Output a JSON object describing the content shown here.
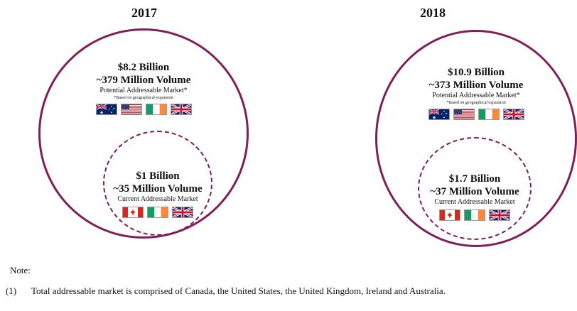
{
  "panels": [
    {
      "year": "2017",
      "potential": {
        "amount": "$8.2 Billion",
        "volume": "~379 Million Volume",
        "label": "Potential Addressable Market*",
        "sublabel": "*Based on geographical expansion",
        "flags": [
          "australia-flag-icon",
          "usa-flag-icon",
          "ireland-flag-icon",
          "uk-flag-icon"
        ]
      },
      "current": {
        "amount": "$1 Billion",
        "volume": "~35 Million Volume",
        "label": "Current Addressable Market",
        "flags": [
          "canada-flag-icon",
          "ireland-flag-icon",
          "uk-flag-icon"
        ]
      }
    },
    {
      "year": "2018",
      "potential": {
        "amount": "$10.9 Billion",
        "volume": "~373 Million Volume",
        "label": "Potential Addressable Market*",
        "sublabel": "*Based on geographical expansion",
        "flags": [
          "australia-flag-icon",
          "usa-flag-icon",
          "ireland-flag-icon",
          "uk-flag-icon"
        ]
      },
      "current": {
        "amount": "$1.7 Billion",
        "volume": "~37 Million Volume",
        "label": "Current Addressable Market",
        "flags": [
          "canada-flag-icon",
          "ireland-flag-icon",
          "uk-flag-icon"
        ]
      }
    }
  ],
  "note": {
    "title": "Note:",
    "number": "(1)",
    "text": "Total addressable market is comprised of Canada, the United States, the United Kingdom, Ireland and Australia."
  },
  "colors": {
    "circle": "#7e1f5a"
  }
}
